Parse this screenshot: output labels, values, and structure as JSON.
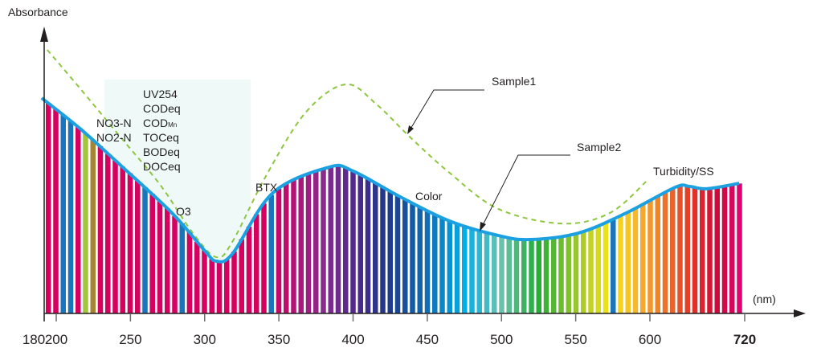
{
  "chart_data": {
    "type": "line",
    "title": "",
    "ylabel": "Absorbance",
    "xlabel": "(nm)",
    "xlim": [
      180,
      720
    ],
    "ylim": [
      0,
      100
    ],
    "x_ticks": [
      180,
      200,
      250,
      300,
      350,
      400,
      450,
      500,
      550,
      600,
      720
    ],
    "x_tick_labels": [
      "180",
      "200",
      "250",
      "300",
      "350",
      "400",
      "450",
      "500",
      "550",
      "600",
      "720"
    ],
    "series": [
      {
        "name": "Sample1",
        "style": "dashed",
        "color": "#8cc63f",
        "x": [
          192,
          216,
          243,
          270,
          292,
          308,
          319,
          341,
          368,
          395,
          416,
          438,
          465,
          498,
          541,
          573,
          598
        ],
        "y": [
          92.4,
          78.9,
          62.0,
          45.1,
          28.2,
          19.7,
          25.4,
          47.9,
          70.4,
          80.3,
          73.2,
          62.0,
          49.3,
          36.6,
          31.5,
          35.2,
          46.5
        ]
      },
      {
        "name": "Sample2",
        "style": "solid",
        "color": "#1ba1e2",
        "x": [
          187,
          216,
          243,
          278,
          300,
          308,
          319,
          346,
          384,
          400,
          432,
          465,
          498,
          519,
          552,
          584,
          632,
          650,
          672,
          713
        ],
        "y": [
          75.5,
          64.8,
          52.1,
          35.2,
          22.0,
          18.3,
          21.1,
          42.3,
          51.3,
          49.9,
          40.8,
          32.4,
          27.3,
          25.9,
          28.2,
          35.2,
          44.2,
          44.5,
          43.7,
          45.6
        ]
      }
    ],
    "marker_bands": [
      {
        "nm": 205,
        "color": "#1a75bb"
      },
      {
        "nm": 212,
        "color": "#1a75bb"
      },
      {
        "nm": 219,
        "color": "#a4c639"
      },
      {
        "nm": 223,
        "color": "#a68432"
      },
      {
        "nm": 260,
        "color": "#1a75bb"
      },
      {
        "nm": 283,
        "color": "#1a75bb"
      },
      {
        "nm": 347,
        "color": "#1a75bb"
      },
      {
        "nm": 575,
        "color": "#1a75bb"
      }
    ],
    "annotations": {
      "uv_group": [
        "UV254",
        "CODeq",
        "COD",
        "TOCeq",
        "BODeq",
        "DOCeq"
      ],
      "cod_sub": "Mn",
      "nitro": [
        "NO3-N",
        "NO2-N"
      ],
      "o3": "O3",
      "btx": "BTX",
      "color": "Color",
      "turbidity": "Turbidity/SS",
      "sample1": "Sample1",
      "sample2": "Sample2"
    },
    "grid": false
  }
}
